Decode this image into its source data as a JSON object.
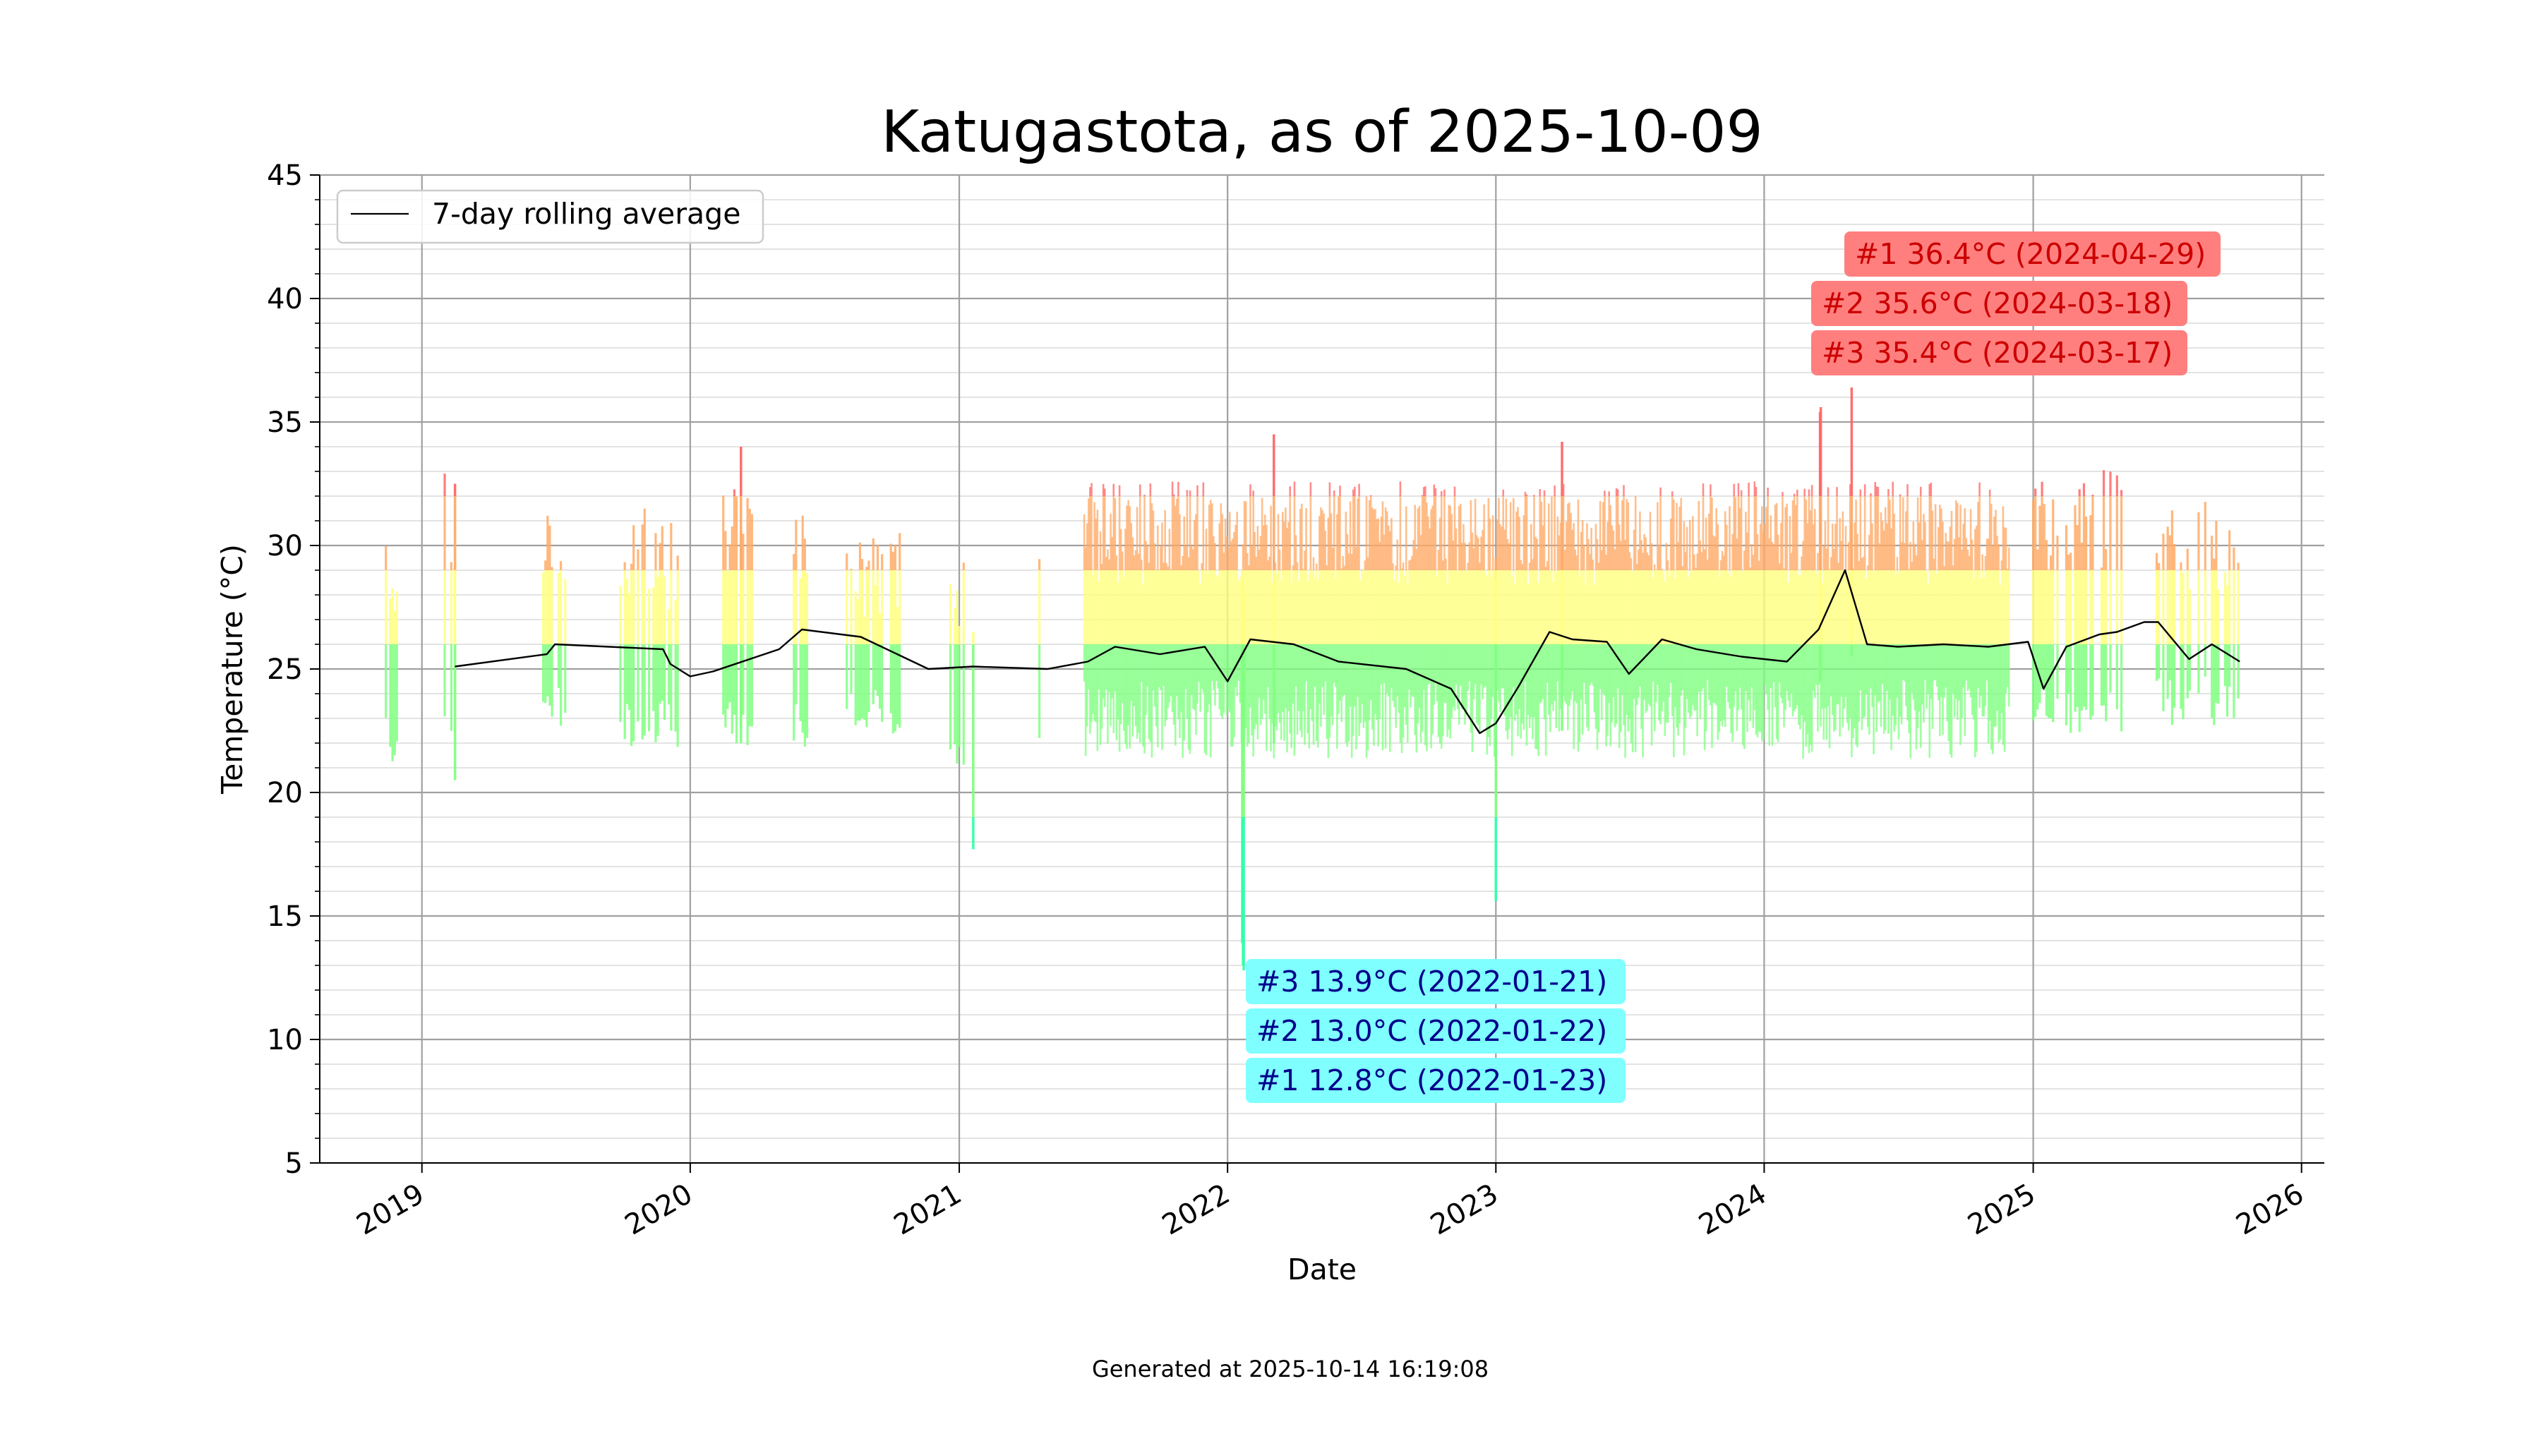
{
  "chart_data": {
    "type": "bar",
    "title": "Katugastota, as of 2025-10-09",
    "xlabel": "Date",
    "ylabel": "Temperature (°C)",
    "ylim": [
      5,
      45
    ],
    "xlim": [
      "2018-08-15",
      "2026-02-01"
    ],
    "y_ticks": [
      "5",
      "10",
      "15",
      "20",
      "25",
      "30",
      "35",
      "40",
      "45"
    ],
    "x_ticks": [
      {
        "date": "2019-01-01",
        "label": "2019"
      },
      {
        "date": "2020-01-01",
        "label": "2020"
      },
      {
        "date": "2021-01-01",
        "label": "2021"
      },
      {
        "date": "2022-01-01",
        "label": "2022"
      },
      {
        "date": "2023-01-01",
        "label": "2023"
      },
      {
        "date": "2024-01-01",
        "label": "2024"
      },
      {
        "date": "2025-01-01",
        "label": "2025"
      },
      {
        "date": "2026-01-01",
        "label": "2026"
      }
    ],
    "grid": true,
    "minor_grid": true,
    "legend": {
      "placement": "top-left",
      "entries": [
        {
          "label": "7-day rolling average",
          "color": "#000000"
        }
      ]
    },
    "bar_color_scale": {
      "cold": "#33ffaa",
      "cool": "#7fff7f",
      "mild": "#ffff7f",
      "warm": "#ffaa66",
      "hot": "#ff6666"
    },
    "daily_ranges": {
      "description": "Daily min–max bars sampled by period",
      "periods": [
        {
          "start": "2018-11-10",
          "end": "2018-11-30",
          "typical_min": 21.5,
          "typical_max": 29.3
        },
        {
          "start": "2019-02-01",
          "end": "2019-02-20",
          "typical_min": 21.5,
          "typical_max": 31.0
        },
        {
          "start": "2019-06-15",
          "end": "2019-07-20",
          "typical_min": 22.5,
          "typical_max": 30.0
        },
        {
          "start": "2019-09-25",
          "end": "2019-12-15",
          "typical_min": 22.0,
          "typical_max": 29.5
        },
        {
          "start": "2020-02-15",
          "end": "2020-03-25",
          "typical_min": 22.0,
          "typical_max": 30.5
        },
        {
          "start": "2020-05-15",
          "end": "2020-06-10",
          "typical_min": 22.0,
          "typical_max": 30.5
        },
        {
          "start": "2020-08-01",
          "end": "2020-10-15",
          "typical_min": 22.5,
          "typical_max": 28.5
        },
        {
          "start": "2020-12-20",
          "end": "2021-01-10",
          "typical_min": 20.5,
          "typical_max": 28.5
        },
        {
          "start": "2021-04-20",
          "end": "2021-04-25",
          "typical_min": 21.5,
          "typical_max": 30.5
        },
        {
          "start": "2021-06-20",
          "end": "2024-11-30",
          "typical_min": 22.8,
          "typical_max": 30.5
        },
        {
          "start": "2025-01-01",
          "end": "2025-05-01",
          "typical_min": 22.5,
          "typical_max": 31.0
        },
        {
          "start": "2025-06-15",
          "end": "2025-10-09",
          "typical_min": 23.0,
          "typical_max": 30.0
        }
      ],
      "notable": [
        {
          "date": "2020-03-10",
          "min": 22.0,
          "max": 34.0
        },
        {
          "date": "2019-02-15",
          "min": 20.5,
          "max": 32.5
        },
        {
          "date": "2021-01-20",
          "min": 17.7,
          "max": 26.5
        },
        {
          "date": "2022-01-23",
          "min": 12.8,
          "max": 28.0
        },
        {
          "date": "2022-01-22",
          "min": 13.0,
          "max": 28.5
        },
        {
          "date": "2022-01-21",
          "min": 13.9,
          "max": 29.0
        },
        {
          "date": "2022-03-05",
          "min": 22.0,
          "max": 34.5
        },
        {
          "date": "2023-01-01",
          "min": 15.6,
          "max": 29.5
        },
        {
          "date": "2023-04-01",
          "min": 22.5,
          "max": 34.2
        },
        {
          "date": "2024-03-17",
          "min": 24.5,
          "max": 35.4
        },
        {
          "date": "2024-03-18",
          "min": 24.8,
          "max": 35.6
        },
        {
          "date": "2024-04-29",
          "min": 25.5,
          "max": 36.4
        }
      ]
    },
    "rolling_average": {
      "name": "7-day rolling average",
      "x": [
        "2019-02-15",
        "2019-06-20",
        "2019-07-01",
        "2019-11-25",
        "2019-12-05",
        "2020-01-01",
        "2020-02-01",
        "2020-05-01",
        "2020-06-01",
        "2020-08-20",
        "2020-11-20",
        "2021-01-20",
        "2021-05-01",
        "2021-06-25",
        "2021-08-01",
        "2021-10-01",
        "2021-12-01",
        "2022-01-01",
        "2022-02-01",
        "2022-04-01",
        "2022-06-01",
        "2022-09-01",
        "2022-11-01",
        "2022-12-10",
        "2023-01-01",
        "2023-02-01",
        "2023-03-15",
        "2023-04-15",
        "2023-06-01",
        "2023-07-01",
        "2023-08-15",
        "2023-10-01",
        "2023-12-01",
        "2024-02-01",
        "2024-03-15",
        "2024-04-20",
        "2024-05-20",
        "2024-07-01",
        "2024-09-01",
        "2024-11-01",
        "2024-12-25",
        "2025-01-15",
        "2025-02-15",
        "2025-04-01",
        "2025-04-25",
        "2025-06-01",
        "2025-06-20",
        "2025-08-01",
        "2025-09-01",
        "2025-10-09"
      ],
      "y": [
        25.1,
        25.6,
        26.0,
        25.8,
        25.2,
        24.7,
        24.9,
        25.8,
        26.6,
        26.3,
        25.0,
        25.1,
        25.0,
        25.3,
        25.9,
        25.6,
        25.9,
        24.5,
        26.2,
        26.0,
        25.3,
        25.0,
        24.2,
        22.4,
        22.8,
        24.3,
        26.5,
        26.2,
        26.1,
        24.8,
        26.2,
        25.8,
        25.5,
        25.3,
        26.6,
        29.0,
        26.0,
        25.9,
        26.0,
        25.9,
        26.1,
        24.2,
        25.9,
        26.4,
        26.5,
        26.9,
        26.9,
        25.4,
        26.0,
        25.3
      ]
    },
    "annotations": {
      "hottest": [
        {
          "label": "#1 36.4°C (2024-04-29)"
        },
        {
          "label": "#2 35.6°C (2024-03-18)"
        },
        {
          "label": "#3 35.4°C (2024-03-17)"
        }
      ],
      "coldest": [
        {
          "label": "#3 13.9°C (2022-01-21)"
        },
        {
          "label": "#2 13.0°C (2022-01-22)"
        },
        {
          "label": "#1 12.8°C (2022-01-23)"
        }
      ],
      "hot_box_color": "#ff7f7f",
      "hot_text_color": "#cc0000",
      "cold_box_color": "#7fffff",
      "cold_text_color": "#00008b"
    },
    "footer": "Generated at 2025-10-14 16:19:08"
  }
}
